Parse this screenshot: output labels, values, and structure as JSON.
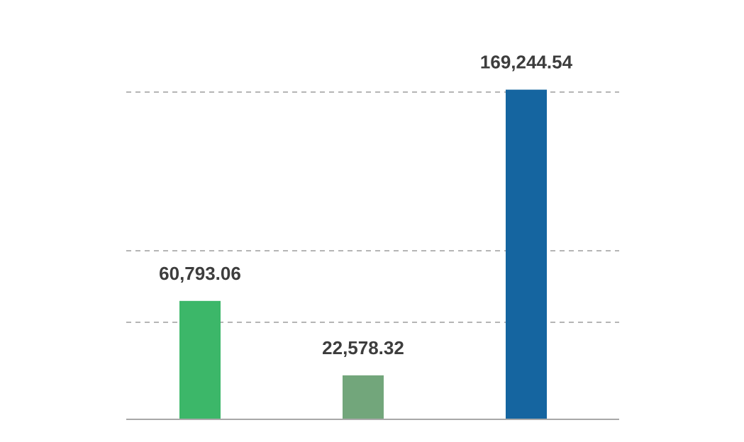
{
  "chart_data": {
    "type": "bar",
    "categories": [
      "",
      "",
      ""
    ],
    "values": [
      60793.06,
      22578.32,
      169244.54
    ],
    "value_labels": [
      "60,793.06",
      "22,578.32",
      "169,244.54"
    ],
    "colors": [
      "#3cb769",
      "#72a67b",
      "#1565a0"
    ],
    "gridlines": [
      50000,
      86500,
      168000
    ],
    "ylim": [
      0,
      168000
    ],
    "grid": true,
    "legend": "none",
    "title": "",
    "xlabel": "",
    "ylabel": ""
  }
}
